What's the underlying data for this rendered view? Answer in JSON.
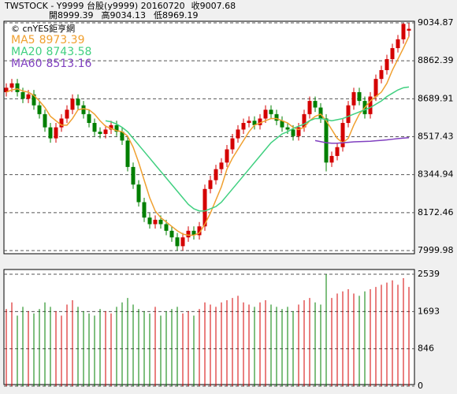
{
  "chart_data": [
    {
      "type": "candlestick",
      "title": "TWSTOCK - Y9999 台股(y9999) 20160720",
      "close_label": "收",
      "open_label": "開",
      "high_label": "高",
      "low_label": "低",
      "source": "© cnYES鉅亨網",
      "up_color": "#d40000",
      "down_color": "#007f00",
      "ylim": [
        7999.98,
        9034.87
      ],
      "yticks": [
        9034.87,
        8862.39,
        8689.91,
        8517.43,
        8344.94,
        8172.46,
        7999.98
      ],
      "grid": true,
      "open": [
        8720,
        8740,
        8760,
        8720,
        8690,
        8710,
        8660,
        8620,
        8560,
        8510,
        8560,
        8600,
        8640,
        8690,
        8660,
        8620,
        8580,
        8540,
        8530,
        8550,
        8570,
        8540,
        8500,
        8380,
        8300,
        8220,
        8150,
        8120,
        8140,
        8120,
        8090,
        8060,
        8020,
        8060,
        8090,
        8070,
        8110,
        8280,
        8320,
        8370,
        8400,
        8460,
        8510,
        8550,
        8580,
        8590,
        8570,
        8600,
        8640,
        8620,
        8590,
        8560,
        8550,
        8520,
        8560,
        8620,
        8680,
        8650,
        8600,
        8400,
        8430,
        8470,
        8580,
        8660,
        8720,
        8680,
        8620,
        8700,
        8780,
        8820,
        8870,
        8920,
        8960,
        8999.39
      ],
      "high": [
        8760,
        8780,
        8780,
        8740,
        8730,
        8730,
        8680,
        8640,
        8580,
        8580,
        8620,
        8660,
        8710,
        8710,
        8680,
        8640,
        8600,
        8560,
        8570,
        8590,
        8590,
        8560,
        8520,
        8400,
        8320,
        8240,
        8170,
        8160,
        8160,
        8140,
        8110,
        8080,
        8080,
        8110,
        8110,
        8130,
        8300,
        8340,
        8390,
        8420,
        8480,
        8530,
        8570,
        8600,
        8610,
        8610,
        8620,
        8660,
        8660,
        8640,
        8610,
        8580,
        8570,
        8580,
        8640,
        8700,
        8700,
        8670,
        8620,
        8450,
        8490,
        8600,
        8680,
        8740,
        8740,
        8700,
        8720,
        8800,
        8840,
        8890,
        8940,
        8980,
        9034,
        9034.13
      ],
      "low": [
        8700,
        8720,
        8700,
        8670,
        8670,
        8640,
        8600,
        8540,
        8490,
        8490,
        8540,
        8580,
        8620,
        8640,
        8600,
        8560,
        8520,
        8510,
        8510,
        8530,
        8520,
        8480,
        8360,
        8280,
        8200,
        8130,
        8100,
        8100,
        8100,
        8070,
        8040,
        8000,
        8000,
        8040,
        8050,
        8050,
        8090,
        8260,
        8300,
        8350,
        8380,
        8440,
        8490,
        8530,
        8560,
        8550,
        8550,
        8580,
        8600,
        8570,
        8540,
        8530,
        8500,
        8500,
        8540,
        8600,
        8630,
        8580,
        8360,
        8380,
        8410,
        8450,
        8560,
        8640,
        8660,
        8600,
        8600,
        8680,
        8760,
        8800,
        8850,
        8900,
        8940,
        8969.19
      ],
      "close": [
        8740,
        8760,
        8720,
        8690,
        8710,
        8660,
        8620,
        8560,
        8510,
        8560,
        8600,
        8640,
        8690,
        8660,
        8620,
        8580,
        8540,
        8530,
        8550,
        8570,
        8540,
        8500,
        8380,
        8300,
        8220,
        8150,
        8120,
        8140,
        8120,
        8090,
        8060,
        8020,
        8060,
        8090,
        8070,
        8110,
        8280,
        8320,
        8370,
        8400,
        8460,
        8510,
        8550,
        8580,
        8590,
        8570,
        8600,
        8640,
        8620,
        8590,
        8560,
        8550,
        8520,
        8560,
        8620,
        8680,
        8650,
        8600,
        8400,
        8430,
        8470,
        8580,
        8660,
        8720,
        8680,
        8620,
        8700,
        8780,
        8820,
        8870,
        8920,
        8960,
        9030,
        9007.68
      ],
      "series": [
        {
          "name": "MA5",
          "color": "#f0a030",
          "values": [
            8720,
            8730,
            8735,
            8725,
            8720,
            8705,
            8680,
            8650,
            8610,
            8590,
            8570,
            8570,
            8600,
            8640,
            8645,
            8640,
            8620,
            8590,
            8565,
            8555,
            8545,
            8540,
            8520,
            8470,
            8400,
            8320,
            8240,
            8180,
            8150,
            8130,
            8110,
            8090,
            8075,
            8070,
            8070,
            8080,
            8120,
            8170,
            8230,
            8290,
            8370,
            8420,
            8460,
            8500,
            8540,
            8570,
            8580,
            8590,
            8600,
            8600,
            8590,
            8580,
            8560,
            8550,
            8560,
            8590,
            8610,
            8620,
            8590,
            8550,
            8510,
            8490,
            8510,
            8570,
            8620,
            8650,
            8680,
            8700,
            8720,
            8760,
            8820,
            8870,
            8920,
            8973.39
          ]
        },
        {
          "name": "MA20",
          "color": "#40d080",
          "values": [
            null,
            null,
            null,
            null,
            null,
            null,
            null,
            null,
            null,
            null,
            null,
            null,
            null,
            null,
            null,
            null,
            null,
            null,
            8590,
            8585,
            8575,
            8560,
            8540,
            8510,
            8480,
            8450,
            8420,
            8390,
            8360,
            8330,
            8300,
            8270,
            8240,
            8210,
            8190,
            8180,
            8180,
            8190,
            8200,
            8220,
            8250,
            8280,
            8310,
            8340,
            8370,
            8400,
            8430,
            8460,
            8490,
            8510,
            8530,
            8540,
            8555,
            8565,
            8575,
            8590,
            8600,
            8600,
            8595,
            8590,
            8595,
            8600,
            8610,
            8620,
            8630,
            8640,
            8650,
            8665,
            8680,
            8700,
            8715,
            8730,
            8740,
            8743.58
          ]
        },
        {
          "name": "MA60",
          "color": "#8040c0",
          "values": [
            null,
            null,
            null,
            null,
            null,
            null,
            null,
            null,
            null,
            null,
            null,
            null,
            null,
            null,
            null,
            null,
            null,
            null,
            null,
            null,
            null,
            null,
            null,
            null,
            null,
            null,
            null,
            null,
            null,
            null,
            null,
            null,
            null,
            null,
            null,
            null,
            null,
            null,
            null,
            null,
            null,
            null,
            null,
            null,
            null,
            null,
            null,
            null,
            null,
            null,
            null,
            null,
            null,
            null,
            null,
            null,
            8500,
            8495,
            8490,
            8488,
            8488,
            8490,
            8492,
            8494,
            8495,
            8496,
            8497,
            8499,
            8501,
            8503,
            8506,
            8509,
            8511,
            8513.16
          ]
        }
      ]
    },
    {
      "type": "volume",
      "ylim": [
        0,
        2539
      ],
      "yticks": [
        2539,
        1693,
        846,
        0
      ],
      "grid": true,
      "values": [
        1750,
        1900,
        1600,
        1800,
        1700,
        1650,
        1750,
        1900,
        1800,
        1700,
        1600,
        1850,
        1950,
        1800,
        1700,
        1650,
        1600,
        1750,
        1700,
        1650,
        1800,
        1900,
        2000,
        1850,
        1750,
        1700,
        1650,
        1800,
        1600,
        1700,
        1750,
        1800,
        1650,
        1700,
        1600,
        1750,
        1900,
        1850,
        1800,
        1900,
        1950,
        2000,
        2050,
        1900,
        1850,
        1800,
        1900,
        1950,
        1850,
        1800,
        1750,
        1800,
        1700,
        1850,
        1950,
        2000,
        1900,
        1850,
        2539,
        2000,
        2100,
        2150,
        2200,
        2100,
        2050,
        2150,
        2200,
        2250,
        2300,
        2350,
        2400,
        2300,
        2450,
        2250
      ]
    }
  ]
}
